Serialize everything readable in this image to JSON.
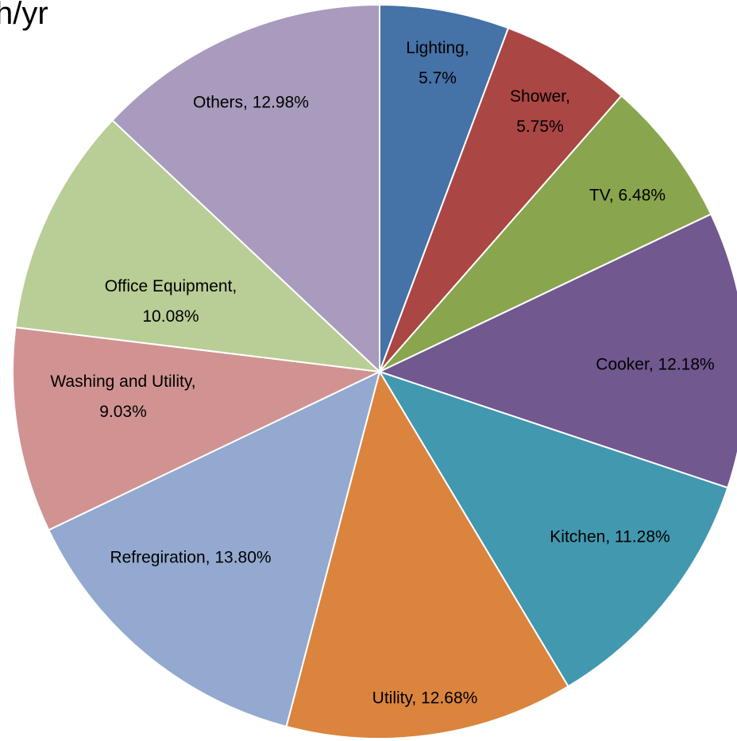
{
  "chart_data": {
    "type": "pie",
    "title": "h/yr",
    "values": [
      5.7,
      5.75,
      6.48,
      12.18,
      11.28,
      12.68,
      13.8,
      9.03,
      10.08,
      12.98
    ],
    "value_labels": [
      "Lighting,\n5.7%",
      "Shower,\n5.75%",
      "TV, 6.48%",
      "Cooker, 12.18%",
      "Kitchen, 11.28%",
      "Utility, 12.68%",
      "Refregiration, 13.80%",
      "Washing and Utility,\n9.03%",
      "Office Equipment,\n10.08%",
      "Others, 12.98%"
    ],
    "colors": [
      "#4572a7",
      "#aa4643",
      "#89a54e",
      "#71588f",
      "#4198af",
      "#db843d",
      "#93a9cf",
      "#d19392",
      "#b9cd96",
      "#a99bbd"
    ]
  }
}
